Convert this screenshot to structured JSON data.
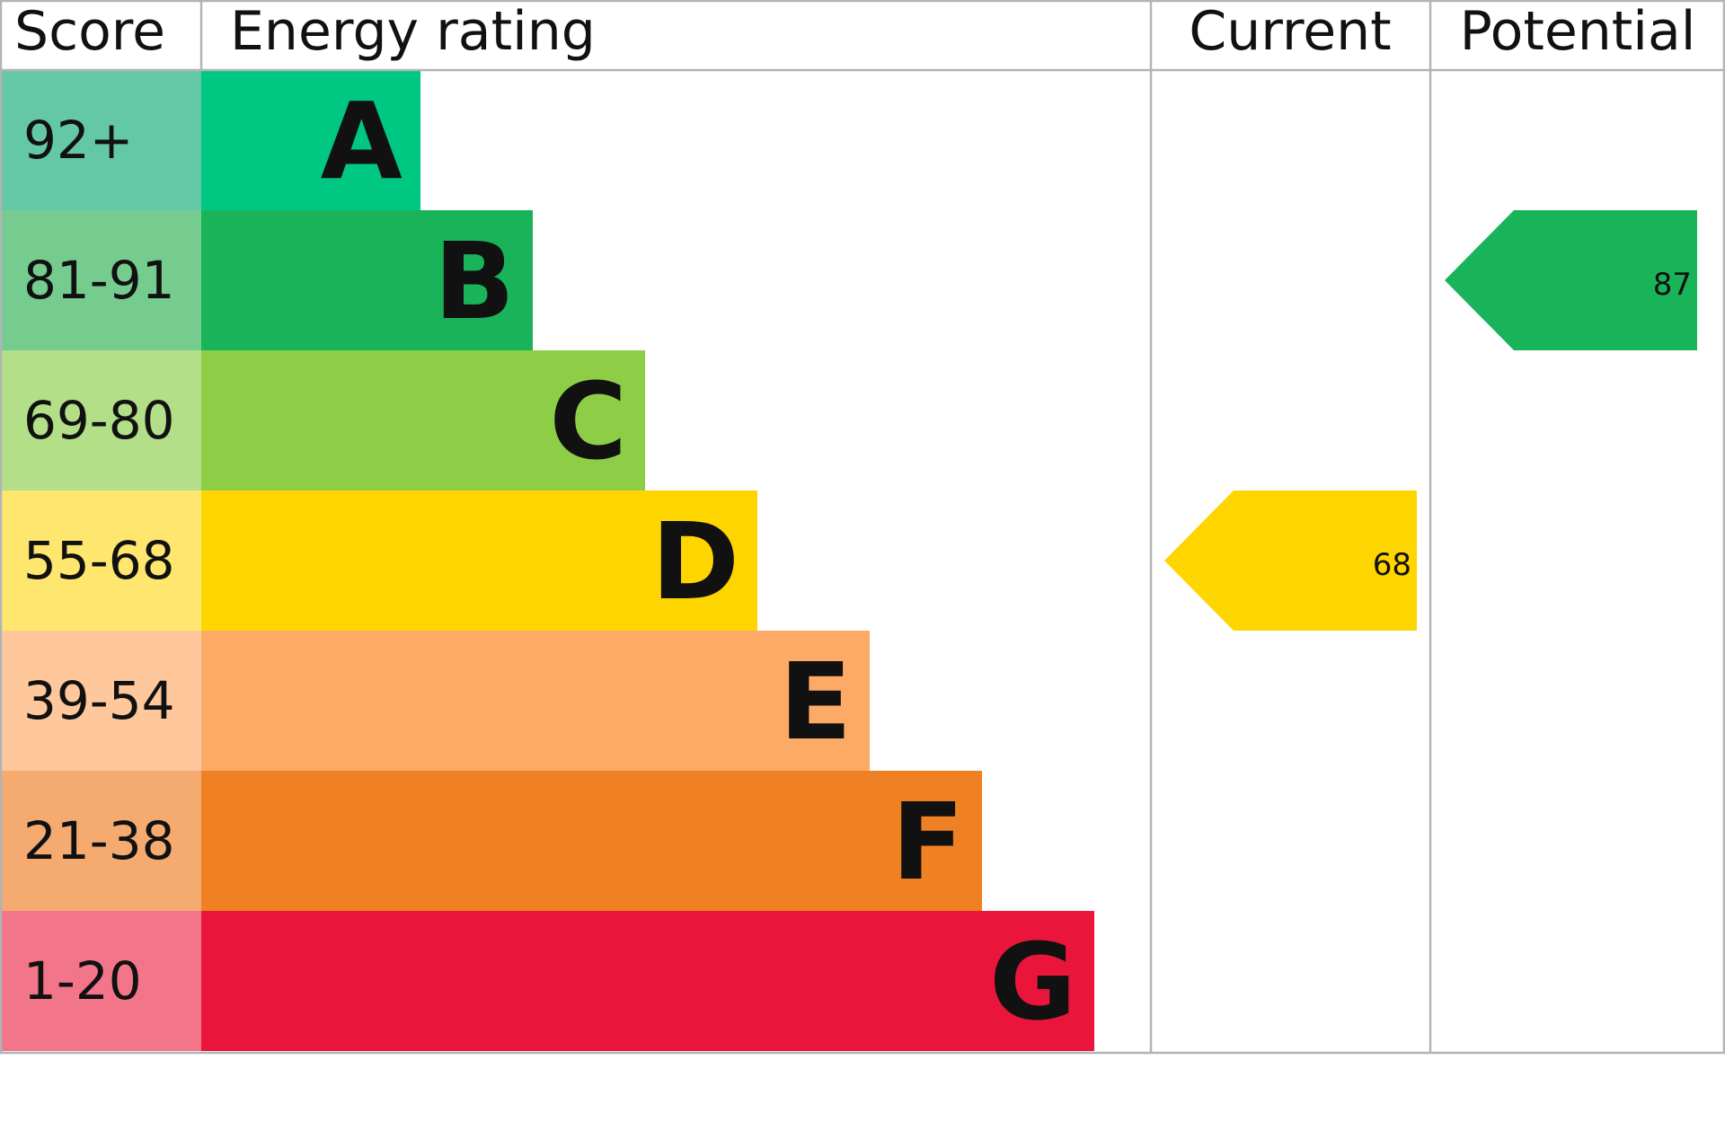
{
  "chart_data": {
    "type": "table",
    "headers": {
      "score": "Score",
      "rating": "Energy rating",
      "current": "Current",
      "potential": "Potential"
    },
    "bands": [
      {
        "letter": "A",
        "range": "92+",
        "color": "#00c781",
        "score_color": "#64c8a6"
      },
      {
        "letter": "B",
        "range": "81-91",
        "color": "#19b459",
        "score_color": "#75cc8e"
      },
      {
        "letter": "C",
        "range": "69-80",
        "color": "#8dce46",
        "score_color": "#b3df88"
      },
      {
        "letter": "D",
        "range": "55-68",
        "color": "#ffd500",
        "score_color": "#ffe66e"
      },
      {
        "letter": "E",
        "range": "39-54",
        "color": "#fcaa65",
        "score_color": "#fec89c"
      },
      {
        "letter": "F",
        "range": "21-38",
        "color": "#ef8023",
        "score_color": "#f5ab70"
      },
      {
        "letter": "G",
        "range": "1-20",
        "color": "#e9153b",
        "score_color": "#f37589"
      }
    ],
    "current": {
      "value": "68",
      "band": "D",
      "color": "#ffd500"
    },
    "potential": {
      "value": "87",
      "band": "B",
      "color": "#19b459"
    },
    "grid_color": "#b1b4b6"
  }
}
